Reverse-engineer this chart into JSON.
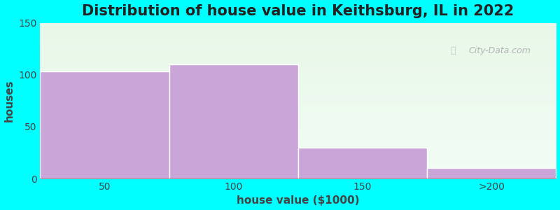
{
  "categories": [
    "50",
    "100",
    "150",
    ">200"
  ],
  "values": [
    103,
    110,
    30,
    10
  ],
  "bar_color": "#c9a5d8",
  "bar_edge_color": "#d0b0e0",
  "title": "Distribution of house value in Keithsburg, IL in 2022",
  "xlabel": "house value ($1000)",
  "ylabel": "houses",
  "ylim": [
    0,
    150
  ],
  "yticks": [
    0,
    50,
    100,
    150
  ],
  "background_color": "#00ffff",
  "plot_bg_color_top": "#e8f5e9",
  "plot_bg_color_bottom": "#f0faf0",
  "watermark": "City-Data.com",
  "title_fontsize": 15,
  "axis_label_fontsize": 11,
  "tick_fontsize": 10,
  "bar_width": 1.0,
  "figsize": [
    8.0,
    3.0
  ],
  "dpi": 100
}
